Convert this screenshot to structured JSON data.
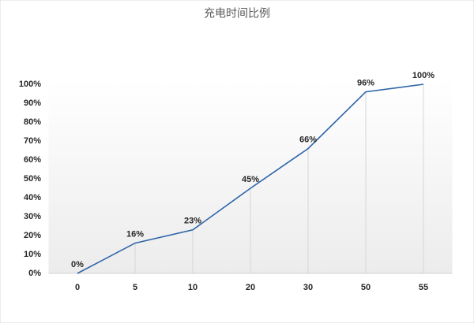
{
  "chart_data": {
    "type": "line",
    "title": "充电时间比例",
    "categories": [
      "0",
      "5",
      "10",
      "20",
      "30",
      "50",
      "55"
    ],
    "series": [
      {
        "color": "#2e64a8",
        "values": [
          0,
          16,
          23,
          45,
          66,
          96,
          100
        ],
        "value_labels": [
          "0%",
          "16%",
          "23%",
          "45%",
          "66%",
          "96%",
          "100%"
        ]
      }
    ],
    "ylim": [
      0,
      100
    ],
    "yticks": [
      {
        "value": 0,
        "label": "0%"
      },
      {
        "value": 10,
        "label": "10%"
      },
      {
        "value": 20,
        "label": "20%"
      },
      {
        "value": 30,
        "label": "30%"
      },
      {
        "value": 40,
        "label": "40%"
      },
      {
        "value": 50,
        "label": "50%"
      },
      {
        "value": 60,
        "label": "60%"
      },
      {
        "value": 70,
        "label": "70%"
      },
      {
        "value": 80,
        "label": "80%"
      },
      {
        "value": 90,
        "label": "90%"
      },
      {
        "value": 100,
        "label": "100%"
      }
    ],
    "grid": false,
    "drop_lines": true
  }
}
